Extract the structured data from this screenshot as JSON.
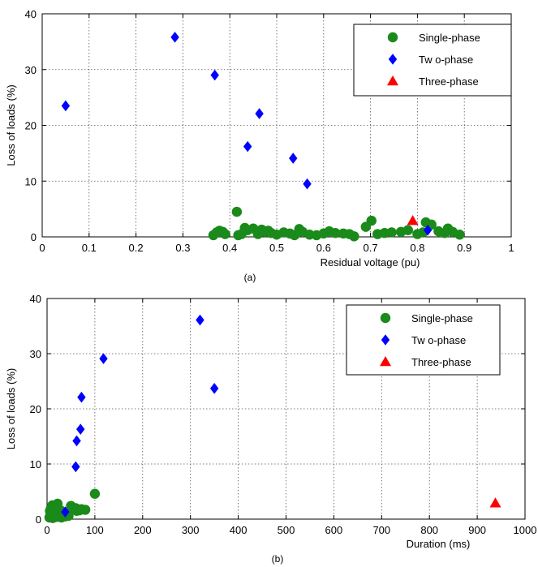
{
  "chart_data": [
    {
      "type": "scatter",
      "caption": "(a)",
      "xlabel": "Residual voltage (pu)",
      "ylabel": "Loss of loads (%)",
      "xlim": [
        0,
        1
      ],
      "ylim": [
        0,
        40
      ],
      "xticks": [
        "0",
        "0.1",
        "0.2",
        "0.3",
        "0.4",
        "0.5",
        "0.6",
        "0.7",
        "0.8",
        "0.9",
        "1"
      ],
      "yticks": [
        "0",
        "10",
        "20",
        "30",
        "40"
      ],
      "grid": true,
      "legend_position": "top-right",
      "series": [
        {
          "name": "Single-phase",
          "marker": "circle",
          "color": "#1a8a1a",
          "points": [
            [
              0.365,
              0.3
            ],
            [
              0.372,
              0.8
            ],
            [
              0.378,
              1.1
            ],
            [
              0.385,
              0.9
            ],
            [
              0.39,
              0.5
            ],
            [
              0.415,
              4.5
            ],
            [
              0.418,
              0.3
            ],
            [
              0.425,
              0.5
            ],
            [
              0.432,
              1.6
            ],
            [
              0.438,
              1.2
            ],
            [
              0.45,
              1.5
            ],
            [
              0.46,
              0.5
            ],
            [
              0.468,
              1.3
            ],
            [
              0.475,
              0.9
            ],
            [
              0.482,
              1.1
            ],
            [
              0.488,
              0.7
            ],
            [
              0.5,
              0.4
            ],
            [
              0.515,
              0.8
            ],
            [
              0.528,
              0.6
            ],
            [
              0.538,
              0.3
            ],
            [
              0.548,
              1.4
            ],
            [
              0.555,
              0.9
            ],
            [
              0.57,
              0.4
            ],
            [
              0.585,
              0.3
            ],
            [
              0.6,
              0.6
            ],
            [
              0.612,
              1.0
            ],
            [
              0.625,
              0.7
            ],
            [
              0.642,
              0.6
            ],
            [
              0.655,
              0.5
            ],
            [
              0.665,
              0.1
            ],
            [
              0.69,
              1.8
            ],
            [
              0.702,
              2.9
            ],
            [
              0.715,
              0.5
            ],
            [
              0.73,
              0.7
            ],
            [
              0.745,
              0.8
            ],
            [
              0.765,
              0.9
            ],
            [
              0.78,
              1.2
            ],
            [
              0.8,
              0.5
            ],
            [
              0.812,
              0.8
            ],
            [
              0.818,
              2.6
            ],
            [
              0.83,
              2.2
            ],
            [
              0.845,
              1.0
            ],
            [
              0.858,
              0.7
            ],
            [
              0.865,
              1.5
            ],
            [
              0.875,
              0.9
            ],
            [
              0.89,
              0.4
            ]
          ]
        },
        {
          "name": "Tw o-phase",
          "marker": "diamond",
          "color": "#0000ff",
          "points": [
            [
              0.05,
              23.5
            ],
            [
              0.283,
              35.8
            ],
            [
              0.368,
              29.0
            ],
            [
              0.438,
              16.2
            ],
            [
              0.463,
              22.1
            ],
            [
              0.535,
              14.1
            ],
            [
              0.565,
              9.5
            ],
            [
              0.822,
              1.2
            ]
          ]
        },
        {
          "name": "Three-phase",
          "marker": "triangle",
          "color": "#ff0000",
          "points": [
            [
              0.79,
              2.9
            ]
          ]
        }
      ]
    },
    {
      "type": "scatter",
      "caption": "(b)",
      "xlabel": "Duration (ms)",
      "ylabel": "Loss of loads (%)",
      "xlim": [
        0,
        1000
      ],
      "ylim": [
        0,
        40
      ],
      "xticks": [
        "0",
        "100",
        "200",
        "300",
        "400",
        "500",
        "600",
        "700",
        "800",
        "900",
        "1000"
      ],
      "yticks": [
        "0",
        "10",
        "20",
        "30",
        "40"
      ],
      "grid": true,
      "legend_position": "top-right",
      "series": [
        {
          "name": "Single-phase",
          "marker": "circle",
          "color": "#1a8a1a",
          "points": [
            [
              5,
              0.3
            ],
            [
              6,
              1.5
            ],
            [
              7,
              0.8
            ],
            [
              8,
              2.0
            ],
            [
              9,
              0.5
            ],
            [
              10,
              1.0
            ],
            [
              11,
              2.5
            ],
            [
              12,
              0.2
            ],
            [
              13,
              1.8
            ],
            [
              14,
              0.6
            ],
            [
              15,
              1.2
            ],
            [
              16,
              2.2
            ],
            [
              18,
              0.9
            ],
            [
              19,
              1.5
            ],
            [
              20,
              0.4
            ],
            [
              22,
              2.8
            ],
            [
              24,
              1.1
            ],
            [
              25,
              0.7
            ],
            [
              28,
              1.6
            ],
            [
              30,
              0.3
            ],
            [
              32,
              1.3
            ],
            [
              35,
              0.8
            ],
            [
              38,
              0.5
            ],
            [
              42,
              1.0
            ],
            [
              45,
              0.6
            ],
            [
              50,
              2.4
            ],
            [
              55,
              1.8
            ],
            [
              60,
              2.0
            ],
            [
              62,
              1.5
            ],
            [
              68,
              1.6
            ],
            [
              72,
              1.8
            ],
            [
              80,
              1.7
            ],
            [
              100,
              4.6
            ]
          ]
        },
        {
          "name": "Tw o-phase",
          "marker": "diamond",
          "color": "#0000ff",
          "points": [
            [
              38,
              1.3
            ],
            [
              60,
              9.5
            ],
            [
              62,
              14.2
            ],
            [
              70,
              16.3
            ],
            [
              72,
              22.1
            ],
            [
              118,
              29.1
            ],
            [
              320,
              36.1
            ],
            [
              350,
              23.7
            ]
          ]
        },
        {
          "name": "Three-phase",
          "marker": "triangle",
          "color": "#ff0000",
          "points": [
            [
              938,
              2.9
            ]
          ]
        }
      ]
    }
  ]
}
